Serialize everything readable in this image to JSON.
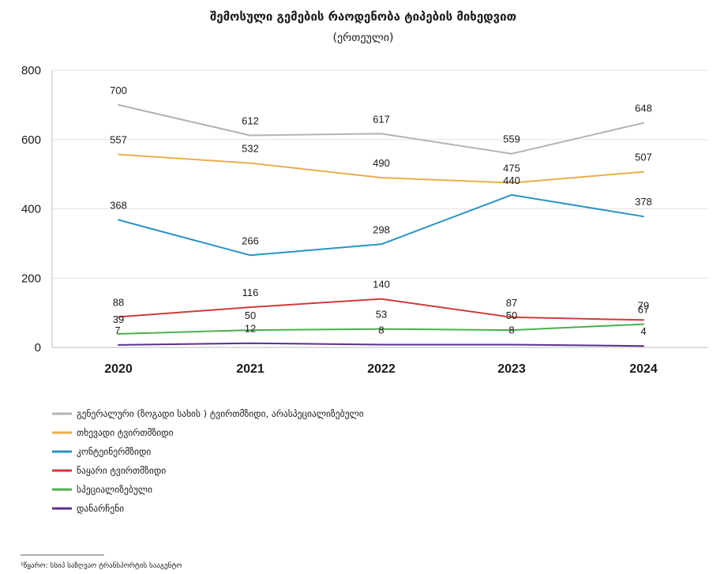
{
  "chart_data": {
    "type": "line",
    "title": "შემოსული გემების რაოდენობა ტიპების მიხედვით",
    "subtitle": "(ერთეული)",
    "xlabel": "",
    "ylabel": "",
    "ylim": [
      0,
      800
    ],
    "yticks": [
      0,
      200,
      400,
      600,
      800
    ],
    "grid": true,
    "legend_placement": "bottom-left",
    "categories": [
      "2020",
      "2021",
      "2022",
      "2023",
      "2024"
    ],
    "series": [
      {
        "name": "გენერალური (ზოგადი სახის ) ტვირთმზიდი, არასპეციალიზებული",
        "color": "#b3b3b3",
        "values": [
          700,
          612,
          617,
          559,
          648
        ]
      },
      {
        "name": "თხევადი ტვირთმზიდი",
        "color": "#e9ae4b",
        "values": [
          557,
          532,
          490,
          475,
          507
        ]
      },
      {
        "name": "კონტეინერმზიდი",
        "color": "#2b93c3",
        "values": [
          368,
          266,
          298,
          440,
          378
        ]
      },
      {
        "name": "ნაყარი ტვირთმზიდი",
        "color": "#cf3a38",
        "values": [
          88,
          116,
          140,
          87,
          79
        ]
      },
      {
        "name": "სპეციალიზებული",
        "color": "#4cae4f",
        "values": [
          39,
          50,
          53,
          50,
          67
        ]
      },
      {
        "name": "დანარჩენი",
        "color": "#5b2f8c",
        "values": [
          7,
          12,
          8,
          8,
          4
        ]
      }
    ]
  },
  "source": "¹წყარო: სსიპ საზღვაო ტრანსპორტის სააგენტო"
}
